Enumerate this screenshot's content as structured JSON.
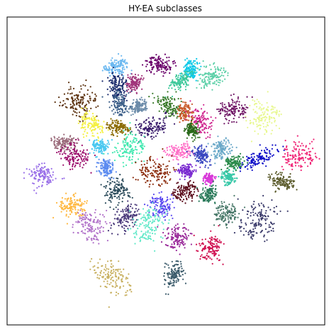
{
  "chart_data": {
    "type": "scatter",
    "title": "HY-EA subclasses",
    "xlabel": "",
    "ylabel": "",
    "axes_ticks": false,
    "grid": false,
    "legend": false,
    "x_range": [
      -1,
      1
    ],
    "y_range": [
      -1,
      1
    ],
    "clusters": [
      {
        "name": "c01",
        "color": "#6bb8f0",
        "cx": -0.31,
        "cy": 0.68,
        "rx": 0.07,
        "ry": 0.05
      },
      {
        "name": "c02",
        "color": "#6a006a",
        "cx": -0.05,
        "cy": 0.69,
        "rx": 0.05,
        "ry": 0.08
      },
      {
        "name": "c03",
        "color": "#08c8e8",
        "cx": 0.16,
        "cy": 0.66,
        "rx": 0.05,
        "ry": 0.05
      },
      {
        "name": "c04",
        "color": "#5dd0a8",
        "cx": 0.29,
        "cy": 0.61,
        "rx": 0.09,
        "ry": 0.07
      },
      {
        "name": "c05",
        "color": "#1a2a6c",
        "cx": -0.31,
        "cy": 0.55,
        "rx": 0.06,
        "ry": 0.07
      },
      {
        "name": "c06",
        "color": "#a0337a",
        "cx": -0.2,
        "cy": 0.57,
        "rx": 0.04,
        "ry": 0.05
      },
      {
        "name": "c07",
        "color": "#3ec89a",
        "cx": 0.09,
        "cy": 0.58,
        "rx": 0.04,
        "ry": 0.08
      },
      {
        "name": "c08",
        "color": "#5c3210",
        "cx": -0.55,
        "cy": 0.45,
        "rx": 0.11,
        "ry": 0.1
      },
      {
        "name": "c09",
        "color": "#3b5e88",
        "cx": -0.29,
        "cy": 0.44,
        "rx": 0.07,
        "ry": 0.05
      },
      {
        "name": "c10",
        "color": "#6a8aa8",
        "cx": -0.17,
        "cy": 0.42,
        "rx": 0.04,
        "ry": 0.05
      },
      {
        "name": "c11",
        "color": "#3a7a2a",
        "cx": 0.02,
        "cy": 0.42,
        "rx": 0.05,
        "ry": 0.1
      },
      {
        "name": "c12",
        "color": "#c85a2a",
        "cx": 0.12,
        "cy": 0.38,
        "rx": 0.04,
        "ry": 0.07
      },
      {
        "name": "c13",
        "color": "#d02890",
        "cx": 0.22,
        "cy": 0.32,
        "rx": 0.06,
        "ry": 0.09
      },
      {
        "name": "c14",
        "color": "#6e1464",
        "cx": 0.42,
        "cy": 0.4,
        "rx": 0.07,
        "ry": 0.08
      },
      {
        "name": "c15",
        "color": "#e8f890",
        "cx": 0.61,
        "cy": 0.35,
        "rx": 0.09,
        "ry": 0.1
      },
      {
        "name": "c16",
        "color": "#f4f040",
        "cx": -0.46,
        "cy": 0.3,
        "rx": 0.08,
        "ry": 0.06
      },
      {
        "name": "c17",
        "color": "#8a6a00",
        "cx": -0.3,
        "cy": 0.28,
        "rx": 0.06,
        "ry": 0.05
      },
      {
        "name": "c18",
        "color": "#3a1c6c",
        "cx": -0.09,
        "cy": 0.28,
        "rx": 0.06,
        "ry": 0.1
      },
      {
        "name": "c19",
        "color": "#2a6a1a",
        "cx": 0.16,
        "cy": 0.26,
        "rx": 0.04,
        "ry": 0.04
      },
      {
        "name": "c20",
        "color": "#9a6a7a",
        "cx": -0.64,
        "cy": 0.18,
        "rx": 0.07,
        "ry": 0.05
      },
      {
        "name": "c21",
        "color": "#9a0a6a",
        "cx": -0.58,
        "cy": 0.1,
        "rx": 0.08,
        "ry": 0.07
      },
      {
        "name": "c22",
        "color": "#4ac8f0",
        "cx": -0.42,
        "cy": 0.16,
        "rx": 0.04,
        "ry": 0.05
      },
      {
        "name": "c23",
        "color": "#40e8b0",
        "cx": -0.23,
        "cy": 0.15,
        "rx": 0.08,
        "ry": 0.09
      },
      {
        "name": "c24",
        "color": "#ff70c8",
        "cx": 0.08,
        "cy": 0.13,
        "rx": 0.07,
        "ry": 0.05
      },
      {
        "name": "c25",
        "color": "#3a48c0",
        "cx": 0.22,
        "cy": 0.1,
        "rx": 0.04,
        "ry": 0.06
      },
      {
        "name": "c26",
        "color": "#6aa8c8",
        "cx": 0.35,
        "cy": 0.14,
        "rx": 0.06,
        "ry": 0.06
      },
      {
        "name": "c27",
        "color": "#2a8a4a",
        "cx": 0.43,
        "cy": 0.05,
        "rx": 0.04,
        "ry": 0.06
      },
      {
        "name": "c28",
        "color": "#1010c8",
        "cx": 0.58,
        "cy": 0.08,
        "rx": 0.04,
        "ry": 0.12
      },
      {
        "name": "c29",
        "color": "#f02878",
        "cx": 0.83,
        "cy": 0.1,
        "rx": 0.08,
        "ry": 0.09
      },
      {
        "name": "c30",
        "color": "#5a8af0",
        "cx": -0.38,
        "cy": 0.02,
        "rx": 0.04,
        "ry": 0.05
      },
      {
        "name": "c31",
        "color": "#8a2a0a",
        "cx": -0.07,
        "cy": -0.01,
        "rx": 0.08,
        "ry": 0.1
      },
      {
        "name": "c32",
        "color": "#7a2ad0",
        "cx": 0.13,
        "cy": 0.0,
        "rx": 0.04,
        "ry": 0.05
      },
      {
        "name": "c33",
        "color": "#d838d8",
        "cx": 0.27,
        "cy": -0.05,
        "rx": 0.03,
        "ry": 0.03
      },
      {
        "name": "c34",
        "color": "#38c8a8",
        "cx": 0.39,
        "cy": -0.04,
        "rx": 0.04,
        "ry": 0.04
      },
      {
        "name": "c35",
        "color": "#5a5a2a",
        "cx": 0.73,
        "cy": -0.07,
        "rx": 0.07,
        "ry": 0.05
      },
      {
        "name": "c36",
        "color": "#9a70e8",
        "cx": -0.78,
        "cy": -0.03,
        "rx": 0.06,
        "ry": 0.08
      },
      {
        "name": "c37",
        "color": "#2a4a5a",
        "cx": -0.31,
        "cy": -0.13,
        "rx": 0.07,
        "ry": 0.08
      },
      {
        "name": "c38",
        "color": "#ffb840",
        "cx": -0.59,
        "cy": -0.23,
        "rx": 0.08,
        "ry": 0.07
      },
      {
        "name": "c39",
        "color": "#5a0a1a",
        "cx": 0.12,
        "cy": -0.13,
        "rx": 0.07,
        "ry": 0.06
      },
      {
        "name": "c40",
        "color": "#2a7a5a",
        "cx": 0.27,
        "cy": -0.15,
        "rx": 0.05,
        "ry": 0.05
      },
      {
        "name": "c41",
        "color": "#b070c8",
        "cx": -0.48,
        "cy": -0.36,
        "rx": 0.08,
        "ry": 0.1
      },
      {
        "name": "c42",
        "color": "#4a3a7a",
        "cx": -0.25,
        "cy": -0.3,
        "rx": 0.06,
        "ry": 0.08
      },
      {
        "name": "c43",
        "color": "#5a48f0",
        "cx": -0.03,
        "cy": -0.22,
        "rx": 0.07,
        "ry": 0.06
      },
      {
        "name": "c44",
        "color": "#60e8c8",
        "cx": -0.12,
        "cy": -0.35,
        "rx": 0.1,
        "ry": 0.1
      },
      {
        "name": "c45",
        "color": "#3a3a6a",
        "cx": 0.58,
        "cy": -0.32,
        "rx": 0.11,
        "ry": 0.13
      },
      {
        "name": "c46",
        "color": "#4a7a6a",
        "cx": 0.38,
        "cy": -0.28,
        "rx": 0.06,
        "ry": 0.07
      },
      {
        "name": "c47",
        "color": "#9a2a9a",
        "cx": 0.07,
        "cy": -0.43,
        "rx": 0.07,
        "ry": 0.07
      },
      {
        "name": "c48",
        "color": "#d01050",
        "cx": 0.28,
        "cy": -0.5,
        "rx": 0.07,
        "ry": 0.08
      },
      {
        "name": "c49",
        "color": "#c8b060",
        "cx": -0.34,
        "cy": -0.69,
        "rx": 0.12,
        "ry": 0.09
      },
      {
        "name": "c50",
        "color": "#3a5a6a",
        "cx": 0.05,
        "cy": -0.68,
        "rx": 0.05,
        "ry": 0.08
      }
    ]
  }
}
